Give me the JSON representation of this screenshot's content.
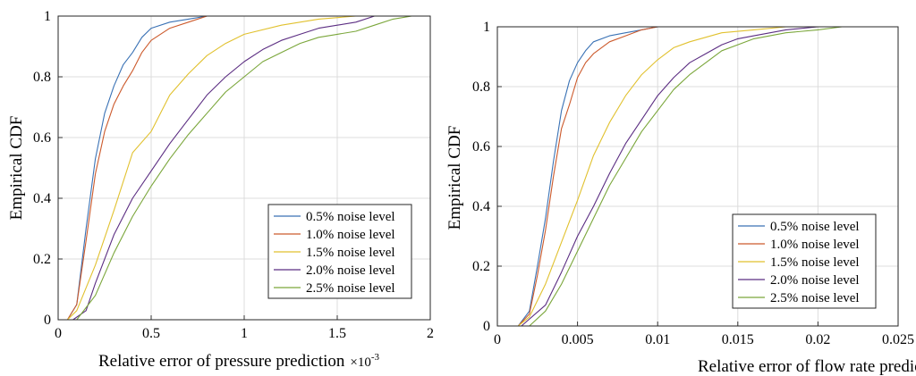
{
  "chart_data": [
    {
      "type": "line",
      "title": "",
      "xlabel": "Relative error of pressure prediction",
      "x_exponent": {
        "base": "×10",
        "power": "-3"
      },
      "ylabel": "Empirical CDF",
      "xlim": [
        0,
        2
      ],
      "ylim": [
        0,
        1
      ],
      "xticks": [
        "0",
        "0.5",
        "1",
        "1.5",
        "2"
      ],
      "yticks": [
        "0",
        "0.2",
        "0.4",
        "0.6",
        "0.8",
        "1"
      ],
      "grid": true,
      "legend_position": "bottom-right",
      "series": [
        {
          "name": "0.5% noise level",
          "color": "#3a72b5",
          "x": [
            0.05,
            0.1,
            0.15,
            0.2,
            0.25,
            0.3,
            0.35,
            0.4,
            0.45,
            0.5,
            0.6,
            0.7,
            0.8,
            1.0
          ],
          "y": [
            0,
            0.05,
            0.3,
            0.53,
            0.68,
            0.77,
            0.84,
            0.88,
            0.93,
            0.96,
            0.98,
            0.99,
            1.0,
            1.0
          ]
        },
        {
          "name": "1.0% noise level",
          "color": "#cc5a2c",
          "x": [
            0.05,
            0.1,
            0.15,
            0.2,
            0.25,
            0.3,
            0.35,
            0.4,
            0.45,
            0.5,
            0.6,
            0.7,
            0.8,
            1.0
          ],
          "y": [
            0,
            0.05,
            0.26,
            0.48,
            0.62,
            0.71,
            0.77,
            0.82,
            0.88,
            0.92,
            0.96,
            0.98,
            1.0,
            1.0
          ]
        },
        {
          "name": "1.5% noise level",
          "color": "#e1c12e",
          "x": [
            0.05,
            0.1,
            0.2,
            0.3,
            0.4,
            0.5,
            0.6,
            0.7,
            0.8,
            0.9,
            1.0,
            1.2,
            1.4,
            1.6,
            1.8
          ],
          "y": [
            0,
            0.03,
            0.18,
            0.36,
            0.55,
            0.62,
            0.74,
            0.81,
            0.87,
            0.91,
            0.94,
            0.97,
            0.99,
            1.0,
            1.0
          ]
        },
        {
          "name": "2.0% noise level",
          "color": "#5b2d82",
          "x": [
            0.08,
            0.15,
            0.2,
            0.3,
            0.4,
            0.5,
            0.6,
            0.7,
            0.8,
            0.9,
            1.0,
            1.1,
            1.2,
            1.3,
            1.4,
            1.5,
            1.6,
            1.7,
            1.8
          ],
          "y": [
            0,
            0.03,
            0.12,
            0.28,
            0.4,
            0.49,
            0.58,
            0.66,
            0.74,
            0.8,
            0.85,
            0.89,
            0.92,
            0.94,
            0.96,
            0.97,
            0.98,
            1.0,
            1.0
          ]
        },
        {
          "name": "2.5% noise level",
          "color": "#7aa63a",
          "x": [
            0.1,
            0.2,
            0.3,
            0.4,
            0.5,
            0.6,
            0.7,
            0.8,
            0.9,
            1.0,
            1.1,
            1.2,
            1.3,
            1.4,
            1.5,
            1.6,
            1.7,
            1.8,
            1.9
          ],
          "y": [
            0,
            0.08,
            0.22,
            0.34,
            0.44,
            0.53,
            0.61,
            0.68,
            0.75,
            0.8,
            0.85,
            0.88,
            0.91,
            0.93,
            0.94,
            0.95,
            0.97,
            0.99,
            1.0
          ]
        }
      ]
    },
    {
      "type": "line",
      "title": "",
      "xlabel": "Relative error of flow rate prediction",
      "ylabel": "Empirical CDF",
      "xlim": [
        0,
        0.025
      ],
      "ylim": [
        0,
        1
      ],
      "xticks": [
        "0",
        "0.005",
        "0.01",
        "0.015",
        "0.02",
        "0.025"
      ],
      "yticks": [
        "0",
        "0.2",
        "0.4",
        "0.6",
        "0.8",
        "1"
      ],
      "grid": true,
      "legend_position": "bottom-right",
      "series": [
        {
          "name": "0.5% noise level",
          "color": "#3a72b5",
          "x": [
            0.0013,
            0.002,
            0.0025,
            0.003,
            0.0035,
            0.004,
            0.0045,
            0.005,
            0.0055,
            0.006,
            0.007,
            0.008,
            0.009,
            0.01,
            0.012
          ],
          "y": [
            0,
            0.05,
            0.2,
            0.36,
            0.55,
            0.72,
            0.82,
            0.88,
            0.92,
            0.95,
            0.97,
            0.98,
            0.99,
            1.0,
            1.0
          ]
        },
        {
          "name": "1.0% noise level",
          "color": "#cc5a2c",
          "x": [
            0.0013,
            0.002,
            0.0025,
            0.003,
            0.0035,
            0.004,
            0.0045,
            0.005,
            0.0055,
            0.006,
            0.007,
            0.008,
            0.009,
            0.01,
            0.012
          ],
          "y": [
            0,
            0.04,
            0.17,
            0.32,
            0.5,
            0.66,
            0.74,
            0.83,
            0.88,
            0.91,
            0.95,
            0.97,
            0.99,
            1.0,
            1.0
          ]
        },
        {
          "name": "1.5% noise level",
          "color": "#e1c12e",
          "x": [
            0.0013,
            0.002,
            0.003,
            0.004,
            0.005,
            0.006,
            0.007,
            0.008,
            0.009,
            0.01,
            0.011,
            0.012,
            0.014,
            0.016,
            0.018
          ],
          "y": [
            0,
            0.03,
            0.14,
            0.28,
            0.42,
            0.57,
            0.68,
            0.77,
            0.84,
            0.89,
            0.93,
            0.95,
            0.98,
            0.99,
            1.0
          ]
        },
        {
          "name": "2.0% noise level",
          "color": "#5b2d82",
          "x": [
            0.0015,
            0.003,
            0.004,
            0.005,
            0.006,
            0.007,
            0.008,
            0.009,
            0.01,
            0.011,
            0.012,
            0.013,
            0.014,
            0.015,
            0.016,
            0.018,
            0.02
          ],
          "y": [
            0,
            0.07,
            0.18,
            0.3,
            0.4,
            0.51,
            0.61,
            0.69,
            0.77,
            0.83,
            0.88,
            0.91,
            0.94,
            0.96,
            0.97,
            0.99,
            1.0
          ]
        },
        {
          "name": "2.5% noise level",
          "color": "#7aa63a",
          "x": [
            0.002,
            0.003,
            0.004,
            0.005,
            0.006,
            0.007,
            0.008,
            0.009,
            0.01,
            0.011,
            0.012,
            0.013,
            0.014,
            0.015,
            0.016,
            0.018,
            0.02,
            0.0215
          ],
          "y": [
            0,
            0.05,
            0.14,
            0.25,
            0.36,
            0.47,
            0.56,
            0.65,
            0.72,
            0.79,
            0.84,
            0.88,
            0.92,
            0.94,
            0.96,
            0.98,
            0.99,
            1.0
          ]
        }
      ]
    }
  ]
}
